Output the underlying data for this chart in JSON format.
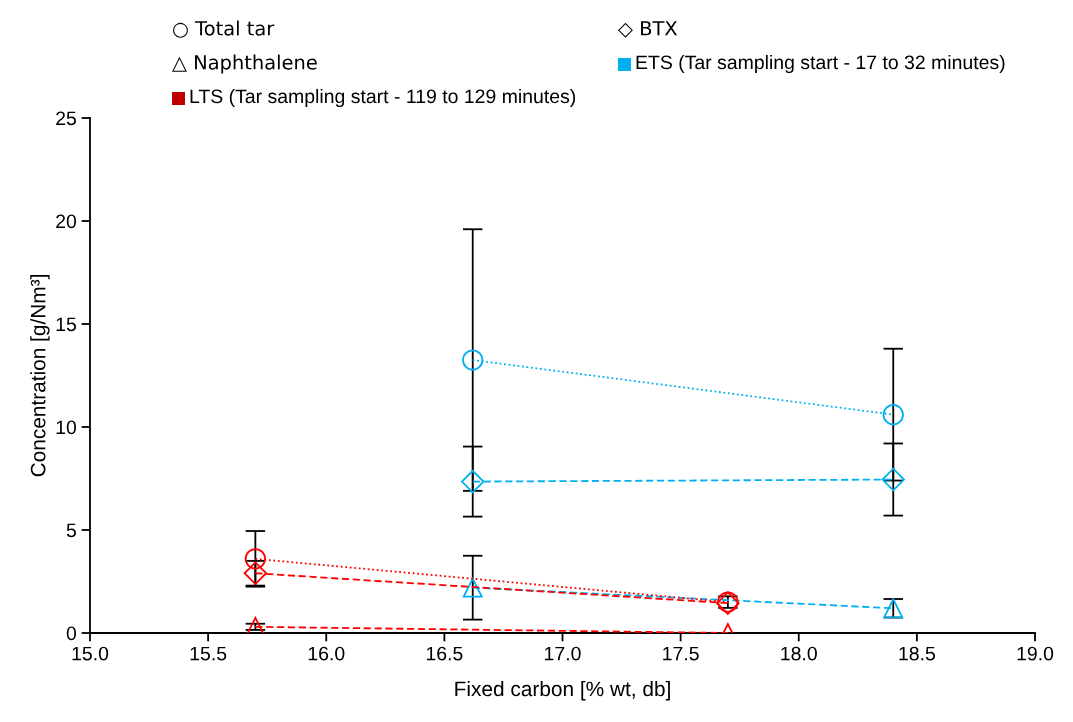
{
  "chart_data": {
    "type": "line",
    "xlabel": "Fixed carbon [% wt, db]",
    "ylabel": "Concentration [g/Nm³]",
    "xlim": [
      15.0,
      19.0
    ],
    "xticks": [
      {
        "value": 15.0,
        "label": "15.0"
      },
      {
        "value": 15.5,
        "label": "15.5"
      },
      {
        "value": 16.0,
        "label": "16.0"
      },
      {
        "value": 16.5,
        "label": "16.5"
      },
      {
        "value": 17.0,
        "label": "17.0"
      },
      {
        "value": 17.5,
        "label": "17.5"
      },
      {
        "value": 18.0,
        "label": "18.0"
      },
      {
        "value": 18.5,
        "label": "18.5"
      },
      {
        "value": 19.0,
        "label": "19.0"
      }
    ],
    "ylim": [
      0,
      25
    ],
    "yticks": [
      0,
      5,
      10,
      15,
      20,
      25
    ],
    "grid": false,
    "annotations": [
      "○ Total tar",
      "◇ BTX",
      "△ Naphthalene",
      "ETS (Tar sampling start - 17 to 32 minutes)",
      "LTS (Tar sampling start - 119 to 129 minutes)"
    ],
    "series": [
      {
        "color": "#00b0f0",
        "marker": "circle",
        "line_style": "dotted",
        "x": [
          16.62,
          18.4
        ],
        "values": [
          13.25,
          10.6
        ],
        "errors": [
          6.35,
          3.2
        ]
      },
      {
        "color": "#00b0f0",
        "marker": "diamond",
        "line_style": "dashed",
        "x": [
          16.62,
          18.4
        ],
        "values": [
          7.35,
          7.45
        ],
        "errors": [
          1.7,
          1.75
        ]
      },
      {
        "color": "#00b0f0",
        "marker": "triangle",
        "line_style": "dashed",
        "x": [
          16.62,
          18.4
        ],
        "values": [
          2.2,
          1.2
        ],
        "errors": [
          1.55,
          0.45
        ]
      },
      {
        "color": "#ff0000",
        "marker": "circle",
        "line_style": "dotted",
        "x": [
          15.7,
          17.7
        ],
        "values": [
          3.6,
          1.5
        ],
        "errors": [
          1.35,
          0.28
        ]
      },
      {
        "color": "#ff0000",
        "marker": "diamond",
        "line_style": "dashed",
        "x": [
          15.7,
          17.7
        ],
        "values": [
          2.9,
          1.45
        ],
        "errors": [
          0.6,
          null
        ]
      },
      {
        "color": "#ff0000",
        "marker": "triangle",
        "line_style": "dashed",
        "x": [
          15.7,
          17.7
        ],
        "values": [
          0.3,
          0.0
        ],
        "errors": [
          0.15,
          null
        ]
      }
    ]
  }
}
